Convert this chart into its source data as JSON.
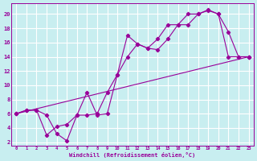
{
  "background_color": "#c8eef0",
  "line_color": "#990099",
  "grid_color": "#ffffff",
  "xlabel": "Windchill (Refroidissement éolien,°C)",
  "xlim": [
    -0.5,
    23.5
  ],
  "ylim": [
    1.5,
    21.5
  ],
  "xticks": [
    0,
    1,
    2,
    3,
    4,
    5,
    6,
    7,
    8,
    9,
    10,
    11,
    12,
    13,
    14,
    15,
    16,
    17,
    18,
    19,
    20,
    21,
    22,
    23
  ],
  "yticks": [
    2,
    4,
    6,
    8,
    10,
    12,
    14,
    16,
    18,
    20
  ],
  "line1_x": [
    0,
    1,
    2,
    3,
    4,
    5,
    6,
    7,
    8,
    9,
    10,
    11,
    12,
    13,
    14,
    15,
    16,
    17,
    18,
    19,
    20,
    21,
    22,
    23
  ],
  "line1_y": [
    6.0,
    6.5,
    6.5,
    5.8,
    3.2,
    2.2,
    5.8,
    9.0,
    5.8,
    6.0,
    11.5,
    17.0,
    15.8,
    15.2,
    15.0,
    16.5,
    18.5,
    18.5,
    20.0,
    20.6,
    20.0,
    17.5,
    14.0,
    14.0
  ],
  "line2_x": [
    0,
    1,
    2,
    3,
    4,
    5,
    6,
    7,
    8,
    9,
    10,
    11,
    12,
    13,
    14,
    15,
    16,
    17,
    18,
    19,
    20,
    21,
    22,
    23
  ],
  "line2_y": [
    6.0,
    6.5,
    6.5,
    3.0,
    4.2,
    4.5,
    5.8,
    5.8,
    6.0,
    9.0,
    11.5,
    14.0,
    15.8,
    15.2,
    16.5,
    18.5,
    18.5,
    20.0,
    20.0,
    20.5,
    20.0,
    14.0,
    14.0,
    14.0
  ],
  "line3_x": [
    0,
    23
  ],
  "line3_y": [
    6.0,
    14.0
  ]
}
